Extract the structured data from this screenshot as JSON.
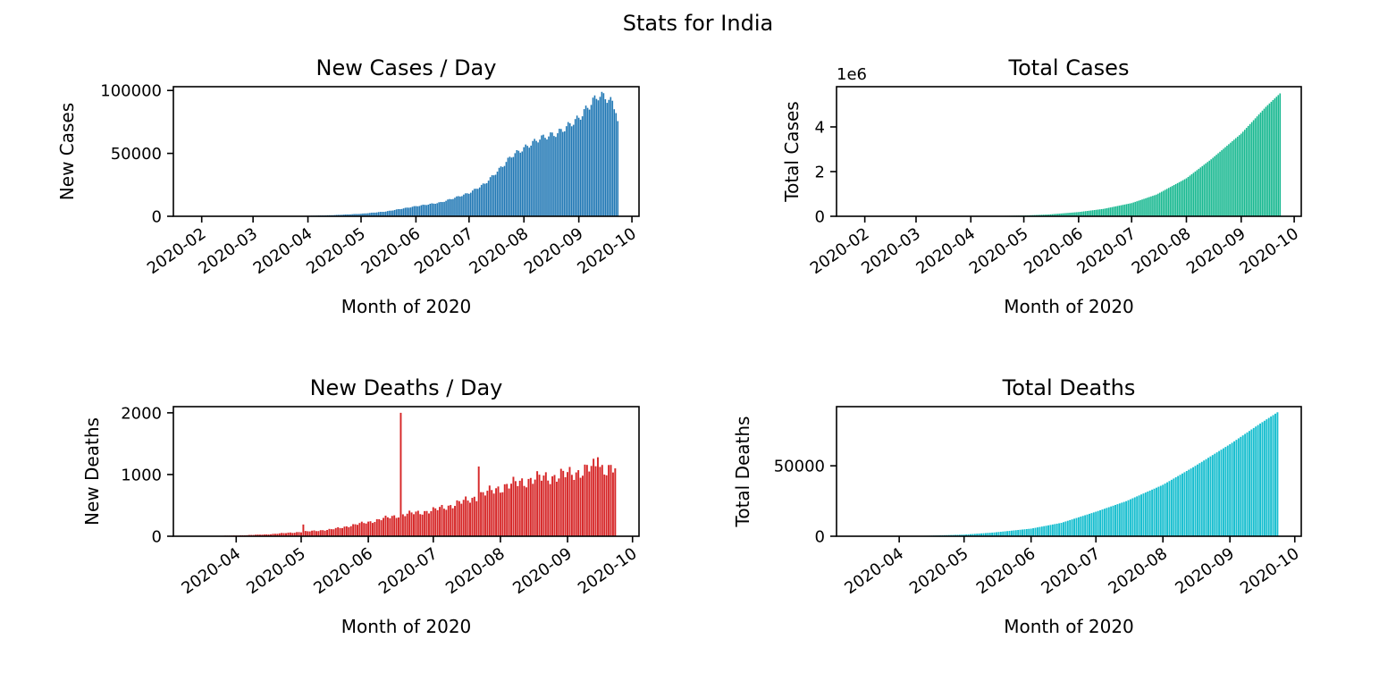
{
  "figure": {
    "title": "Stats for India"
  },
  "chart_data": [
    {
      "type": "bar",
      "title": "New Cases / Day",
      "xlabel": "Month of 2020",
      "ylabel": "New Cases",
      "color": "#1f77b4",
      "x_start": "2020-01-30",
      "x_end": "2020-09-23",
      "xlim": [
        "2020-01-16",
        "2020-10-05"
      ],
      "xticks": [
        "2020-02",
        "2020-03",
        "2020-04",
        "2020-05",
        "2020-06",
        "2020-07",
        "2020-08",
        "2020-09",
        "2020-10"
      ],
      "ylim": [
        0,
        103000
      ],
      "yticks": [
        0,
        50000,
        100000
      ],
      "ytick_labels": [
        "0",
        "50000",
        "100000"
      ],
      "offset_label": "",
      "anchors": [
        [
          "2020-01-30",
          0
        ],
        [
          "2020-03-01",
          0
        ],
        [
          "2020-03-20",
          100
        ],
        [
          "2020-04-01",
          400
        ],
        [
          "2020-04-15",
          900
        ],
        [
          "2020-05-01",
          2000
        ],
        [
          "2020-05-15",
          3800
        ],
        [
          "2020-06-01",
          8000
        ],
        [
          "2020-06-15",
          11000
        ],
        [
          "2020-07-01",
          18500
        ],
        [
          "2020-07-10",
          26000
        ],
        [
          "2020-07-20",
          40000
        ],
        [
          "2020-07-25",
          48000
        ],
        [
          "2020-08-01",
          54000
        ],
        [
          "2020-08-10",
          62000
        ],
        [
          "2020-08-20",
          66000
        ],
        [
          "2020-09-01",
          78000
        ],
        [
          "2020-09-08",
          90000
        ],
        [
          "2020-09-12",
          96000
        ],
        [
          "2020-09-16",
          95000
        ],
        [
          "2020-09-20",
          90000
        ],
        [
          "2020-09-22",
          85000
        ],
        [
          "2020-09-23",
          75000
        ]
      ]
    },
    {
      "type": "bar",
      "title": "Total Cases",
      "xlabel": "Month of 2020",
      "ylabel": "Total Cases",
      "color": "#17b890",
      "x_start": "2020-01-30",
      "x_end": "2020-09-23",
      "xlim": [
        "2020-01-16",
        "2020-10-05"
      ],
      "xticks": [
        "2020-02",
        "2020-03",
        "2020-04",
        "2020-05",
        "2020-06",
        "2020-07",
        "2020-08",
        "2020-09",
        "2020-10"
      ],
      "ylim": [
        0,
        5.8
      ],
      "yticks": [
        0,
        2,
        4
      ],
      "ytick_labels": [
        "0",
        "2",
        "4"
      ],
      "offset_label": "1e6",
      "anchors": [
        [
          "2020-01-30",
          0
        ],
        [
          "2020-03-25",
          0.0006
        ],
        [
          "2020-04-15",
          0.012
        ],
        [
          "2020-05-01",
          0.035
        ],
        [
          "2020-05-15",
          0.08
        ],
        [
          "2020-06-01",
          0.19
        ],
        [
          "2020-06-15",
          0.33
        ],
        [
          "2020-07-01",
          0.59
        ],
        [
          "2020-07-15",
          0.97
        ],
        [
          "2020-08-01",
          1.7
        ],
        [
          "2020-08-15",
          2.55
        ],
        [
          "2020-09-01",
          3.7
        ],
        [
          "2020-09-15",
          4.9
        ],
        [
          "2020-09-23",
          5.5
        ]
      ]
    },
    {
      "type": "bar",
      "title": "New Deaths / Day",
      "xlabel": "Month of 2020",
      "ylabel": "New Deaths",
      "color": "#d62728",
      "x_start": "2020-03-15",
      "x_end": "2020-09-23",
      "xlim": [
        "2020-03-03",
        "2020-10-04"
      ],
      "xticks": [
        "2020-04",
        "2020-05",
        "2020-06",
        "2020-07",
        "2020-08",
        "2020-09",
        "2020-10"
      ],
      "ylim": [
        0,
        2100
      ],
      "yticks": [
        0,
        1000,
        2000
      ],
      "ytick_labels": [
        "0",
        "1000",
        "2000"
      ],
      "offset_label": "",
      "anchors": [
        [
          "2020-03-15",
          2
        ],
        [
          "2020-04-01",
          12
        ],
        [
          "2020-04-15",
          30
        ],
        [
          "2020-05-01",
          70
        ],
        [
          "2020-05-15",
          110
        ],
        [
          "2020-06-01",
          230
        ],
        [
          "2020-06-15",
          340
        ],
        [
          "2020-07-01",
          420
        ],
        [
          "2020-07-15",
          560
        ],
        [
          "2020-08-01",
          790
        ],
        [
          "2020-08-15",
          920
        ],
        [
          "2020-09-01",
          1000
        ],
        [
          "2020-09-15",
          1130
        ],
        [
          "2020-09-23",
          1080
        ]
      ],
      "spikes": [
        [
          "2020-06-16",
          2000
        ],
        [
          "2020-07-22",
          1130
        ],
        [
          "2020-05-02",
          190
        ],
        [
          "2020-09-15",
          1280
        ]
      ]
    },
    {
      "type": "bar",
      "title": "Total Deaths",
      "xlabel": "Month of 2020",
      "ylabel": "Total Deaths",
      "color": "#17becf",
      "x_start": "2020-03-12",
      "x_end": "2020-09-23",
      "xlim": [
        "2020-03-03",
        "2020-10-04"
      ],
      "xticks": [
        "2020-04",
        "2020-05",
        "2020-06",
        "2020-07",
        "2020-08",
        "2020-09",
        "2020-10"
      ],
      "ylim": [
        0,
        92000
      ],
      "yticks": [
        0,
        50000
      ],
      "ytick_labels": [
        "0",
        "50000"
      ],
      "offset_label": "",
      "anchors": [
        [
          "2020-03-12",
          1
        ],
        [
          "2020-04-01",
          50
        ],
        [
          "2020-04-15",
          400
        ],
        [
          "2020-05-01",
          1150
        ],
        [
          "2020-05-15",
          2700
        ],
        [
          "2020-06-01",
          5400
        ],
        [
          "2020-06-15",
          9500
        ],
        [
          "2020-07-01",
          17400
        ],
        [
          "2020-07-15",
          24900
        ],
        [
          "2020-08-01",
          36500
        ],
        [
          "2020-08-15",
          49000
        ],
        [
          "2020-09-01",
          65300
        ],
        [
          "2020-09-15",
          80000
        ],
        [
          "2020-09-23",
          88000
        ]
      ]
    }
  ]
}
